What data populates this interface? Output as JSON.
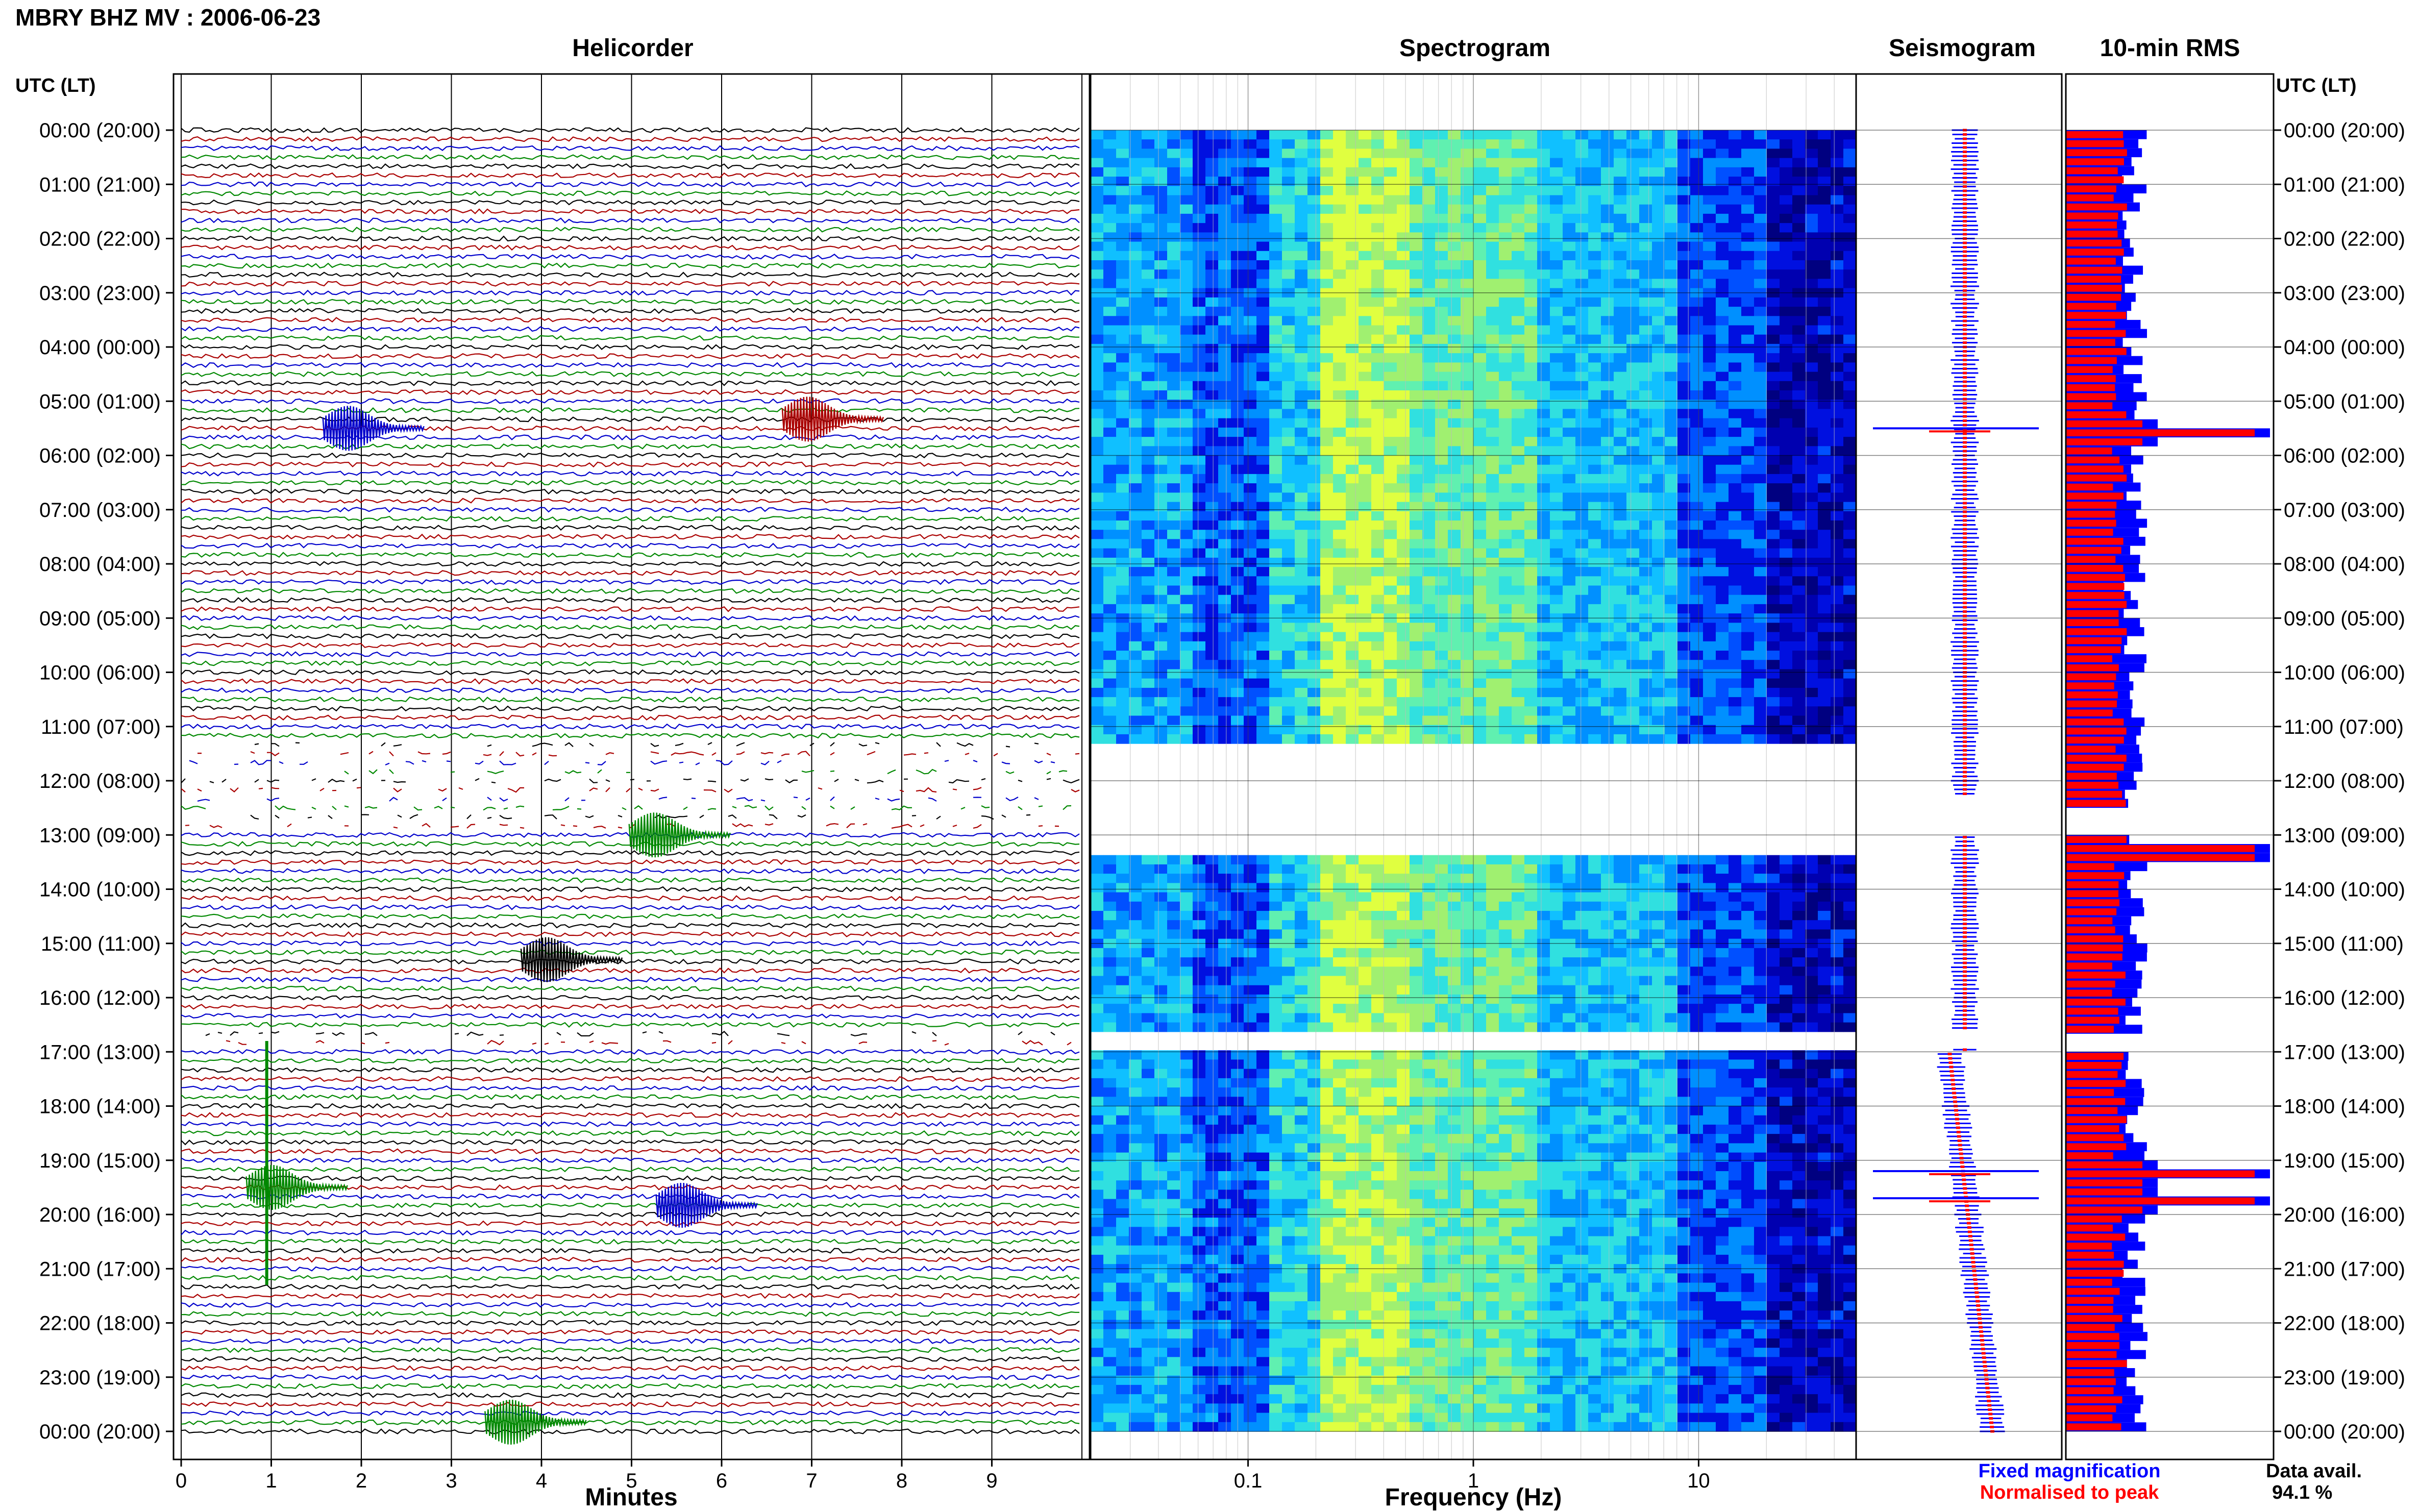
{
  "page": {
    "station_title": "MBRY BHZ MV : 2006-06-23",
    "data_availability_label": "Data avail.",
    "data_availability_value": "94.1 %"
  },
  "panels": {
    "helicorder": {
      "title": "Helicorder"
    },
    "spectrogram": {
      "title": "Spectrogram"
    },
    "seismogram": {
      "title": "Seismogram"
    },
    "rms": {
      "title": "10-min RMS"
    }
  },
  "legend": {
    "fixed": {
      "label": "Fixed magnification",
      "color": "#0000ff"
    },
    "normalised": {
      "label": "Normalised to peak",
      "color": "#ff0000"
    }
  },
  "chart_data": {
    "type": "helicorder-spectrogram-composite",
    "date": "2006-06-23",
    "station": "MBRY",
    "channel": "BHZ",
    "network": "MV",
    "y_axis": {
      "label": "UTC (LT)",
      "ticks": [
        "00:00 (20:00)",
        "01:00 (21:00)",
        "02:00 (22:00)",
        "03:00 (23:00)",
        "04:00 (00:00)",
        "05:00 (01:00)",
        "06:00 (02:00)",
        "07:00 (03:00)",
        "08:00 (04:00)",
        "09:00 (05:00)",
        "10:00 (06:00)",
        "11:00 (07:00)",
        "12:00 (08:00)",
        "13:00 (09:00)",
        "14:00 (10:00)",
        "15:00 (11:00)",
        "16:00 (12:00)",
        "17:00 (13:00)",
        "18:00 (14:00)",
        "19:00 (15:00)",
        "20:00 (16:00)",
        "21:00 (17:00)",
        "22:00 (18:00)",
        "23:00 (19:00)",
        "00:00 (20:00)"
      ],
      "range_hours": [
        0,
        24
      ]
    },
    "helicorder": {
      "xlabel": "Minutes",
      "x_ticks": [
        "0",
        "1",
        "2",
        "3",
        "4",
        "5",
        "6",
        "7",
        "8",
        "9"
      ],
      "xlim": [
        0,
        10
      ],
      "trace_colors": [
        "#000000",
        "#aa0000",
        "#0000cc",
        "#008800"
      ],
      "data_gaps_hours": [
        [
          11.3,
          12.2
        ],
        [
          12.2,
          13.0
        ],
        [
          16.6,
          17.0
        ]
      ],
      "events": [
        {
          "hour": 5.5,
          "minute": 1.8,
          "color_index": 2
        },
        {
          "hour": 5.33,
          "minute": 6.9,
          "color_index": 1
        },
        {
          "hour": 13.0,
          "minute": 5.2,
          "color_index": 3
        },
        {
          "hour": 15.3,
          "minute": 4.0,
          "color_index": 0
        },
        {
          "hour": 19.5,
          "minute": 0.95,
          "color_index": 3
        },
        {
          "hour": 19.83,
          "minute": 5.5,
          "color_index": 2
        },
        {
          "hour": 23.83,
          "minute": 3.6,
          "color_index": 3
        }
      ]
    },
    "spectrogram": {
      "xlabel": "Frequency (Hz)",
      "x_scale": "log",
      "xlim": [
        0.02,
        50
      ],
      "x_ticks": [
        "0.1",
        "1",
        "10"
      ],
      "gaps_hours": [
        [
          11.25,
          12.2
        ],
        [
          12.2,
          13.25
        ],
        [
          16.6,
          16.95
        ]
      ]
    },
    "seismogram": {
      "series": [
        {
          "name": "Fixed magnification",
          "color": "#0000ff"
        },
        {
          "name": "Normalised to peak",
          "color": "#ff0000"
        }
      ],
      "spikes_hours": [
        5.5,
        19.2,
        19.7
      ]
    },
    "rms": {
      "interval_minutes": 10,
      "series": [
        {
          "name": "Fixed magnification",
          "color": "#0000ff"
        },
        {
          "name": "Normalised to peak",
          "color": "#ff0000"
        }
      ],
      "peak_hours": [
        5.55,
        13.25,
        19.2,
        19.7
      ],
      "gaps_hours": [
        [
          12.4,
          13.0
        ],
        [
          16.6,
          17.0
        ]
      ]
    }
  }
}
